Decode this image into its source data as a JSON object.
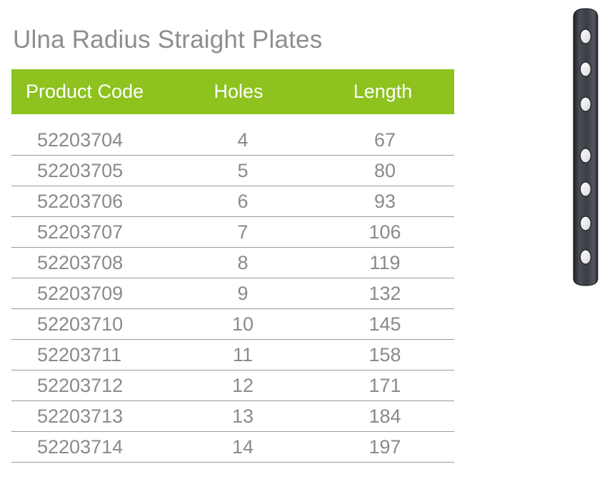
{
  "title": "Ulna Radius Straight Plates",
  "colors": {
    "accent": "#8dc21f",
    "text": "#8a8a8a",
    "header_text": "#ffffff",
    "plate": "#3a3d42"
  },
  "table": {
    "headers": {
      "code": "Product Code",
      "holes": "Holes",
      "length": "Length"
    },
    "rows": [
      {
        "code": "52203704",
        "holes": "4",
        "length": "67"
      },
      {
        "code": "52203705",
        "holes": "5",
        "length": "80"
      },
      {
        "code": "52203706",
        "holes": "6",
        "length": "93"
      },
      {
        "code": "52203707",
        "holes": "7",
        "length": "106"
      },
      {
        "code": "52203708",
        "holes": "8",
        "length": "119"
      },
      {
        "code": "52203709",
        "holes": "9",
        "length": "132"
      },
      {
        "code": "52203710",
        "holes": "10",
        "length": "145"
      },
      {
        "code": "52203711",
        "holes": "11",
        "length": "158"
      },
      {
        "code": "52203712",
        "holes": "12",
        "length": "171"
      },
      {
        "code": "52203713",
        "holes": "13",
        "length": "184"
      },
      {
        "code": "52203714",
        "holes": "14",
        "length": "197"
      }
    ]
  },
  "image": {
    "icon": "bone-plate-icon"
  }
}
